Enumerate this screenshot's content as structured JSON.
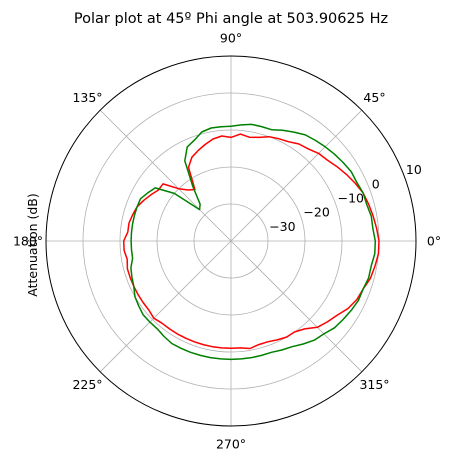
{
  "chart_data": {
    "type": "line",
    "projection": "polar",
    "title": "Polar plot at 45º Phi angle at 503.90625 Hz",
    "ylabel": "Attenuation (dB)",
    "theta_unit": "degrees",
    "theta_tick_labels": [
      "0°",
      "45°",
      "90°",
      "135°",
      "180°",
      "225°",
      "270°",
      "315°"
    ],
    "theta_tick_values": [
      0,
      45,
      90,
      135,
      180,
      225,
      270,
      315
    ],
    "r_tick_values": [
      -30,
      -20,
      -10,
      0,
      10
    ],
    "r_tick_labels": [
      "−30",
      "−20",
      "−10",
      "0",
      "10"
    ],
    "rlim": [
      -40,
      10
    ],
    "grid": true,
    "legend": false,
    "series": [
      {
        "color": "#ff0000",
        "theta": [
          0,
          5,
          10,
          15,
          20,
          25,
          30,
          35,
          40,
          45,
          50,
          55,
          60,
          65,
          70,
          75,
          80,
          85,
          90,
          95,
          100,
          105,
          110,
          115,
          120,
          125,
          130,
          135,
          140,
          145,
          150,
          155,
          160,
          165,
          170,
          175,
          180,
          185,
          190,
          195,
          200,
          205,
          210,
          215,
          220,
          225,
          230,
          235,
          240,
          245,
          250,
          255,
          260,
          265,
          270,
          275,
          280,
          285,
          290,
          295,
          300,
          305,
          310,
          315,
          320,
          325,
          330,
          335,
          340,
          345,
          350,
          355,
          360
        ],
        "r": [
          0,
          -0.5,
          -1,
          -1.5,
          -2,
          -3,
          -4,
          -5,
          -6,
          -6.5,
          -7.5,
          -8,
          -9,
          -9.5,
          -10,
          -11,
          -11.5,
          -11,
          -12,
          -11.5,
          -12,
          -13,
          -14,
          -15,
          -17,
          -23,
          -22,
          -20,
          -16,
          -16,
          -15,
          -14,
          -13,
          -12.5,
          -12,
          -12,
          -11,
          -11,
          -11.5,
          -11,
          -11,
          -11,
          -11,
          -11,
          -11,
          -10.5,
          -11,
          -11,
          -11,
          -11,
          -11,
          -11,
          -11,
          -11,
          -11,
          -11,
          -10.5,
          -11,
          -11,
          -10.5,
          -10,
          -10,
          -9,
          -7,
          -6,
          -5,
          -3.5,
          -2.5,
          -2,
          -1,
          -0.5,
          0,
          0
        ]
      },
      {
        "color": "#008000",
        "theta": [
          0,
          5,
          10,
          15,
          20,
          25,
          30,
          35,
          40,
          45,
          50,
          55,
          60,
          65,
          70,
          75,
          80,
          85,
          90,
          95,
          100,
          105,
          110,
          115,
          120,
          125,
          130,
          135,
          140,
          145,
          150,
          155,
          160,
          165,
          170,
          175,
          180,
          185,
          190,
          195,
          200,
          205,
          210,
          215,
          220,
          225,
          230,
          235,
          240,
          245,
          250,
          255,
          260,
          265,
          270,
          275,
          280,
          285,
          290,
          295,
          300,
          305,
          310,
          315,
          320,
          325,
          330,
          335,
          340,
          345,
          350,
          355,
          360
        ],
        "r": [
          -1,
          -1.5,
          -1.5,
          -2,
          -2,
          -2.5,
          -2.5,
          -3,
          -3.5,
          -4,
          -4.5,
          -5,
          -6,
          -7,
          -8,
          -8,
          -8,
          -8.5,
          -9,
          -9,
          -9,
          -9.5,
          -11,
          -12,
          -15,
          -22,
          -27,
          -28,
          -20,
          -15,
          -14,
          -13,
          -13,
          -13,
          -13,
          -13,
          -13,
          -13,
          -13,
          -12,
          -11.5,
          -11,
          -10,
          -9.5,
          -9,
          -9,
          -9,
          -8.5,
          -8,
          -8,
          -8,
          -8,
          -8,
          -8,
          -8,
          -8,
          -8,
          -8,
          -8,
          -7.5,
          -7,
          -6,
          -5,
          -4.5,
          -3.5,
          -3,
          -2.5,
          -2,
          -2,
          -1.5,
          -1.5,
          -1,
          -1
        ]
      }
    ]
  }
}
